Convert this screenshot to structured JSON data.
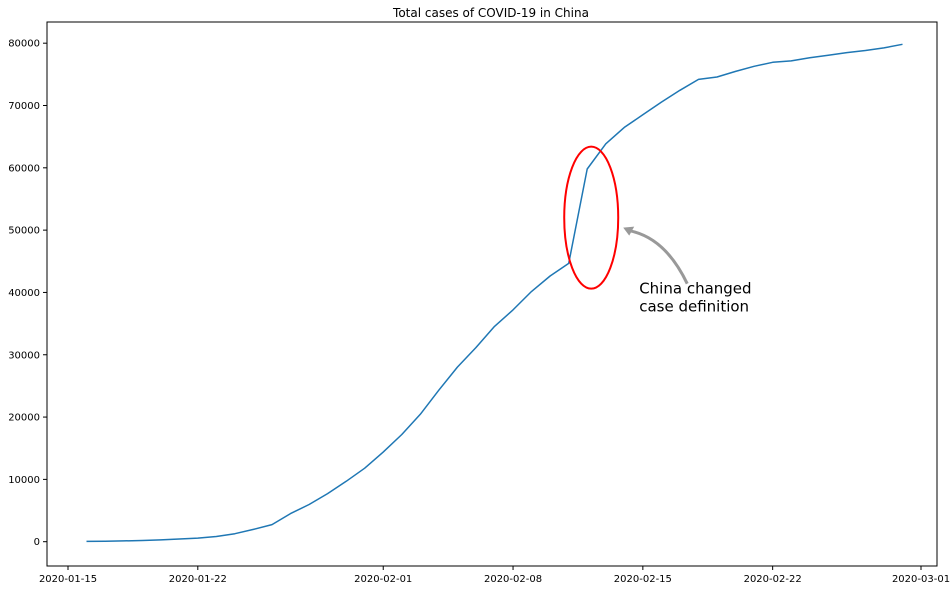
{
  "chart_data": {
    "type": "line",
    "title": "Total cases of COVID-19 in China",
    "xlabel": "",
    "ylabel": "",
    "x_tick_labels": [
      "2020-01-15",
      "2020-01-22",
      "2020-02-01",
      "2020-02-08",
      "2020-02-15",
      "2020-02-22",
      "2020-03-01"
    ],
    "y_tick_labels": [
      "0",
      "10000",
      "20000",
      "30000",
      "40000",
      "50000",
      "60000",
      "70000",
      "80000"
    ],
    "y_ticks": [
      0,
      10000,
      20000,
      30000,
      40000,
      50000,
      60000,
      70000,
      80000
    ],
    "xlim": [
      "2020-01-15",
      "2020-03-01"
    ],
    "ylim": [
      -3900,
      83400
    ],
    "grid": false,
    "series_color": "#1f77b4",
    "x": [
      "2020-01-16",
      "2020-01-17",
      "2020-01-18",
      "2020-01-19",
      "2020-01-20",
      "2020-01-21",
      "2020-01-22",
      "2020-01-23",
      "2020-01-24",
      "2020-01-25",
      "2020-01-26",
      "2020-01-27",
      "2020-01-28",
      "2020-01-29",
      "2020-01-30",
      "2020-01-31",
      "2020-02-01",
      "2020-02-02",
      "2020-02-03",
      "2020-02-04",
      "2020-02-05",
      "2020-02-06",
      "2020-02-07",
      "2020-02-08",
      "2020-02-09",
      "2020-02-10",
      "2020-02-11",
      "2020-02-12",
      "2020-02-13",
      "2020-02-14",
      "2020-02-15",
      "2020-02-16",
      "2020-02-17",
      "2020-02-18",
      "2020-02-19",
      "2020-02-20",
      "2020-02-21",
      "2020-02-22",
      "2020-02-23",
      "2020-02-24",
      "2020-02-25",
      "2020-02-26",
      "2020-02-27",
      "2020-02-28",
      "2020-02-29"
    ],
    "values": [
      45,
      62,
      121,
      198,
      291,
      440,
      571,
      830,
      1287,
      1975,
      2744,
      4515,
      5974,
      7711,
      9692,
      11791,
      14380,
      17205,
      20440,
      24324,
      28018,
      31161,
      34546,
      37198,
      40171,
      42638,
      44653,
      59804,
      63851,
      66492,
      68500,
      70548,
      72436,
      74185,
      74576,
      75465,
      76288,
      76936,
      77150,
      77658,
      78064,
      78497,
      78824,
      79251,
      79824
    ],
    "annotation": {
      "text_lines": [
        "China changed",
        "case definition"
      ],
      "circle_color": "#ff0000",
      "arrow_color": "#999999",
      "target_x": "2020-02-12",
      "target_y": 52000
    }
  }
}
